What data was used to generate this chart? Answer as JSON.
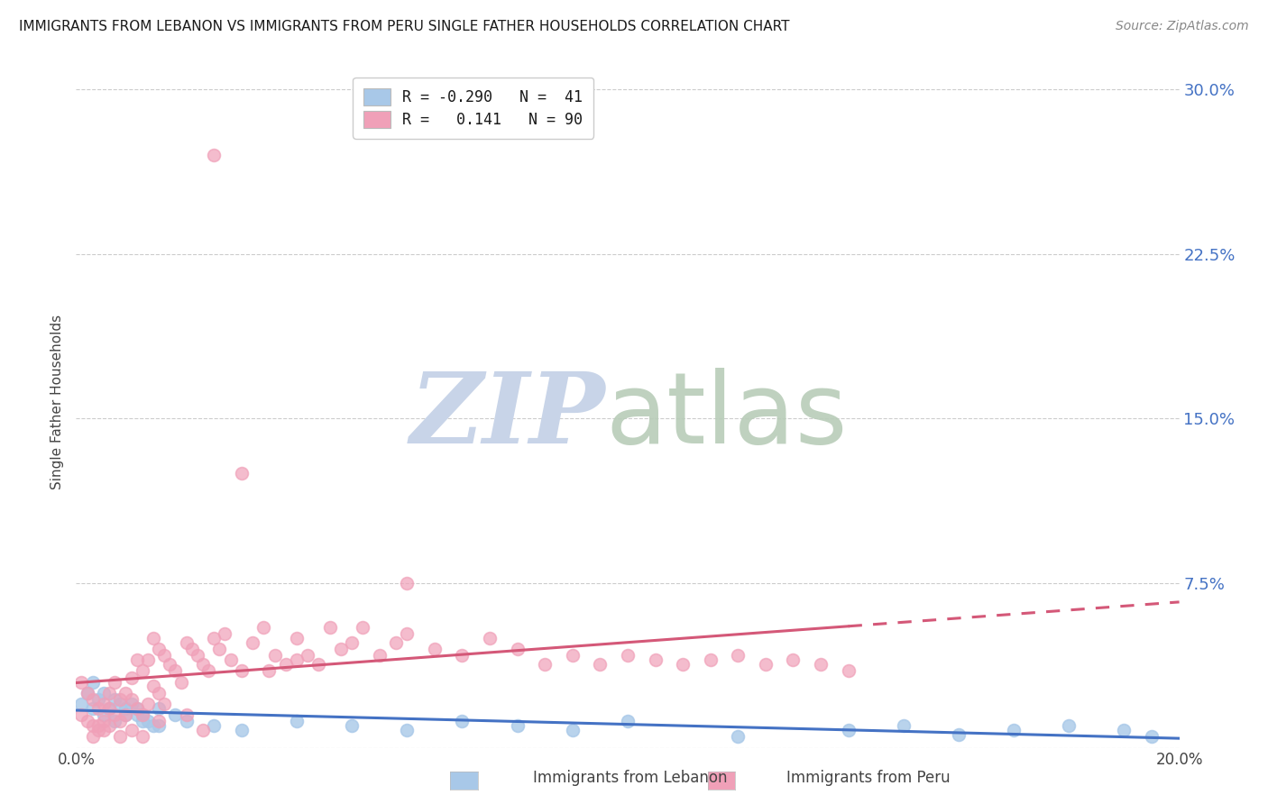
{
  "title": "IMMIGRANTS FROM LEBANON VS IMMIGRANTS FROM PERU SINGLE FATHER HOUSEHOLDS CORRELATION CHART",
  "source": "Source: ZipAtlas.com",
  "ylabel": "Single Father Households",
  "color_lebanon": "#a8c8e8",
  "color_peru": "#f0a0b8",
  "line_color_lebanon": "#4472c4",
  "line_color_peru": "#d45878",
  "background_color": "#ffffff",
  "xlim": [
    0.0,
    0.2
  ],
  "ylim": [
    0.0,
    0.315
  ],
  "ytick_vals": [
    0.0,
    0.075,
    0.15,
    0.225,
    0.3
  ],
  "ytick_labels": [
    "",
    "7.5%",
    "15.0%",
    "22.5%",
    "30.0%"
  ],
  "xtick_vals": [
    0.0,
    0.05,
    0.1,
    0.15,
    0.2
  ],
  "xtick_labels_show": [
    "0.0%",
    "",
    "",
    "",
    "20.0%"
  ],
  "legend_text1": "R = -0.290   N =  41",
  "legend_text2": "R =   0.141   N = 90",
  "watermark_zip_color": "#c8d4e8",
  "watermark_atlas_color": "#b8ccb8",
  "leb_x": [
    0.001,
    0.002,
    0.003,
    0.004,
    0.005,
    0.006,
    0.007,
    0.008,
    0.009,
    0.01,
    0.011,
    0.012,
    0.013,
    0.014,
    0.015,
    0.003,
    0.005,
    0.007,
    0.009,
    0.011,
    0.012,
    0.015,
    0.018,
    0.02,
    0.025,
    0.03,
    0.04,
    0.05,
    0.06,
    0.07,
    0.08,
    0.09,
    0.1,
    0.12,
    0.14,
    0.15,
    0.16,
    0.17,
    0.18,
    0.19,
    0.195
  ],
  "leb_y": [
    0.02,
    0.025,
    0.018,
    0.022,
    0.015,
    0.018,
    0.012,
    0.02,
    0.015,
    0.02,
    0.018,
    0.015,
    0.012,
    0.01,
    0.018,
    0.03,
    0.025,
    0.022,
    0.018,
    0.015,
    0.012,
    0.01,
    0.015,
    0.012,
    0.01,
    0.008,
    0.012,
    0.01,
    0.008,
    0.012,
    0.01,
    0.008,
    0.012,
    0.005,
    0.008,
    0.01,
    0.006,
    0.008,
    0.01,
    0.008,
    0.005
  ],
  "peru_x": [
    0.001,
    0.001,
    0.002,
    0.002,
    0.003,
    0.003,
    0.004,
    0.004,
    0.005,
    0.005,
    0.006,
    0.006,
    0.007,
    0.007,
    0.008,
    0.008,
    0.009,
    0.009,
    0.01,
    0.01,
    0.011,
    0.011,
    0.012,
    0.012,
    0.013,
    0.013,
    0.014,
    0.014,
    0.015,
    0.015,
    0.016,
    0.016,
    0.017,
    0.018,
    0.019,
    0.02,
    0.021,
    0.022,
    0.023,
    0.024,
    0.025,
    0.026,
    0.027,
    0.028,
    0.03,
    0.032,
    0.034,
    0.036,
    0.038,
    0.04,
    0.042,
    0.044,
    0.046,
    0.048,
    0.05,
    0.052,
    0.055,
    0.058,
    0.06,
    0.065,
    0.07,
    0.075,
    0.08,
    0.085,
    0.09,
    0.095,
    0.1,
    0.105,
    0.11,
    0.115,
    0.12,
    0.125,
    0.13,
    0.135,
    0.14,
    0.003,
    0.005,
    0.008,
    0.012,
    0.02,
    0.025,
    0.03,
    0.035,
    0.04,
    0.004,
    0.006,
    0.01,
    0.015,
    0.023,
    0.06
  ],
  "peru_y": [
    0.015,
    0.03,
    0.012,
    0.025,
    0.01,
    0.022,
    0.018,
    0.008,
    0.02,
    0.012,
    0.018,
    0.025,
    0.015,
    0.03,
    0.012,
    0.022,
    0.025,
    0.015,
    0.022,
    0.032,
    0.018,
    0.04,
    0.015,
    0.035,
    0.04,
    0.02,
    0.028,
    0.05,
    0.025,
    0.045,
    0.02,
    0.042,
    0.038,
    0.035,
    0.03,
    0.048,
    0.045,
    0.042,
    0.038,
    0.035,
    0.05,
    0.045,
    0.052,
    0.04,
    0.035,
    0.048,
    0.055,
    0.042,
    0.038,
    0.05,
    0.042,
    0.038,
    0.055,
    0.045,
    0.048,
    0.055,
    0.042,
    0.048,
    0.052,
    0.045,
    0.042,
    0.05,
    0.045,
    0.038,
    0.042,
    0.038,
    0.042,
    0.04,
    0.038,
    0.04,
    0.042,
    0.038,
    0.04,
    0.038,
    0.035,
    0.005,
    0.008,
    0.005,
    0.005,
    0.015,
    0.27,
    0.125,
    0.035,
    0.04,
    0.01,
    0.01,
    0.008,
    0.012,
    0.008,
    0.075
  ]
}
